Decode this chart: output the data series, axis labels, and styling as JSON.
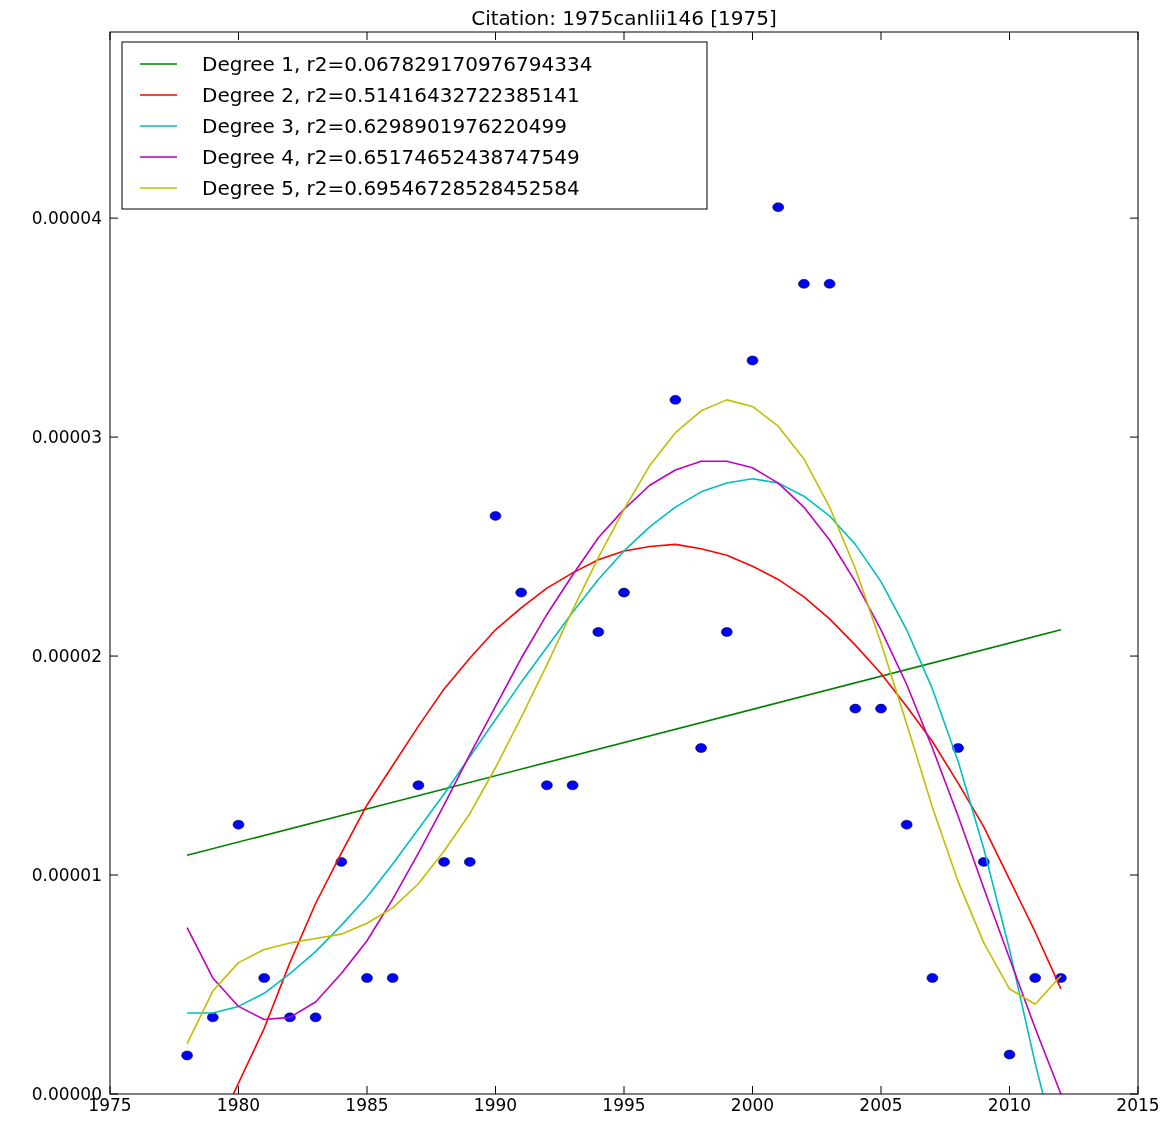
{
  "chart_data": {
    "type": "scatter",
    "title": "Citation: 1975canlii146 [1975]",
    "xlim": [
      1975,
      2015
    ],
    "xticks": [
      1975,
      1980,
      1985,
      1990,
      1995,
      2000,
      2005,
      2010,
      2015
    ],
    "ylim": [
      0,
      4.85e-05
    ],
    "yticks": [
      {
        "value": 0,
        "label": "0.00000"
      },
      {
        "value": 1e-05,
        "label": "0.00001"
      },
      {
        "value": 2e-05,
        "label": "0.00002"
      },
      {
        "value": 3e-05,
        "label": "0.00003"
      },
      {
        "value": 4e-05,
        "label": "0.00004"
      }
    ],
    "grid": false,
    "legend": "top left",
    "marker": "circle",
    "series": [
      {
        "color": "#0000ff",
        "x": [
          1978,
          1979,
          1980,
          1981,
          1982,
          1983,
          1984,
          1985,
          1986,
          1987,
          1988,
          1989,
          1990,
          1991,
          1992,
          1993,
          1994,
          1995,
          1997,
          1998,
          1999,
          2000,
          2001,
          2002,
          2003,
          2004,
          2005,
          2006,
          2007,
          2008,
          2009,
          2010,
          2011,
          2012
        ],
        "values": [
          1.76e-06,
          3.5e-06,
          1.23e-05,
          5.3e-06,
          3.5e-06,
          3.5e-06,
          1.06e-05,
          5.3e-06,
          5.3e-06,
          1.41e-05,
          1.06e-05,
          1.06e-05,
          2.64e-05,
          2.29e-05,
          1.41e-05,
          1.41e-05,
          2.11e-05,
          2.29e-05,
          3.17e-05,
          1.58e-05,
          2.11e-05,
          3.35e-05,
          4.05e-05,
          3.7e-05,
          3.7e-05,
          1.76e-05,
          1.76e-05,
          1.23e-05,
          5.3e-06,
          1.58e-05,
          1.06e-05,
          1.8e-06,
          5.3e-06,
          5.3e-06
        ]
      },
      {
        "type": "line",
        "name": "Degree 1, r2=0.067829170976794334",
        "color": "#008000",
        "marker": "none",
        "line_style": "solid",
        "x": [
          1978,
          2012
        ],
        "values": [
          1.09e-05,
          2.12e-05
        ]
      },
      {
        "type": "line",
        "name": "Degree 2, r2=0.51416432722385141",
        "color": "#ff0000",
        "marker": "none",
        "line_style": "solid",
        "x": [
          1979.8,
          1981,
          1982,
          1983,
          1984,
          1985,
          1986,
          1987,
          1988,
          1989,
          1990,
          1991,
          1992,
          1993,
          1994,
          1995,
          1996,
          1997,
          1998,
          1999,
          2000,
          2001,
          2002,
          2003,
          2004,
          2005,
          2006,
          2007,
          2008,
          2009,
          2010,
          2011,
          2012
        ],
        "values": [
          0,
          3e-06,
          6e-06,
          8.7e-06,
          1.1e-05,
          1.32e-05,
          1.5e-05,
          1.68e-05,
          1.85e-05,
          1.99e-05,
          2.12e-05,
          2.22e-05,
          2.31e-05,
          2.38e-05,
          2.44e-05,
          2.48e-05,
          2.5e-05,
          2.51e-05,
          2.49e-05,
          2.46e-05,
          2.41e-05,
          2.35e-05,
          2.27e-05,
          2.17e-05,
          2.05e-05,
          1.92e-05,
          1.77e-05,
          1.61e-05,
          1.42e-05,
          1.22e-05,
          9.8e-06,
          7.4e-06,
          4.8e-06
        ]
      },
      {
        "type": "line",
        "name": "Degree 3, r2=0.6298901976220499",
        "color": "#00bfbf",
        "marker": "none",
        "line_style": "solid",
        "x": [
          1978,
          1979,
          1980,
          1981,
          1982,
          1983,
          1984,
          1985,
          1986,
          1987,
          1988,
          1989,
          1990,
          1991,
          1992,
          1993,
          1994,
          1995,
          1996,
          1997,
          1998,
          1999,
          2000,
          2001,
          2002,
          2003,
          2004,
          2005,
          2006,
          2007,
          2008,
          2009,
          2010,
          2011,
          2011.3
        ],
        "values": [
          3.7e-06,
          3.7e-06,
          4e-06,
          4.6e-06,
          5.5e-06,
          6.5e-06,
          7.7e-06,
          9e-06,
          1.05e-05,
          1.21e-05,
          1.37e-05,
          1.54e-05,
          1.71e-05,
          1.88e-05,
          2.04e-05,
          2.2e-05,
          2.35e-05,
          2.48e-05,
          2.59e-05,
          2.68e-05,
          2.75e-05,
          2.79e-05,
          2.81e-05,
          2.79e-05,
          2.73e-05,
          2.64e-05,
          2.51e-05,
          2.34e-05,
          2.12e-05,
          1.85e-05,
          1.52e-05,
          1.12e-05,
          6.6e-06,
          1.4e-06,
          0
        ]
      },
      {
        "type": "line",
        "name": "Degree 4, r2=0.65174652438747549",
        "color": "#bf00bf",
        "marker": "none",
        "line_style": "solid",
        "x": [
          1978,
          1979,
          1980,
          1981,
          1982,
          1983,
          1984,
          1985,
          1986,
          1987,
          1988,
          1989,
          1990,
          1991,
          1992,
          1993,
          1994,
          1995,
          1996,
          1997,
          1998,
          1999,
          2000,
          2001,
          2002,
          2003,
          2004,
          2005,
          2006,
          2007,
          2008,
          2009,
          2010,
          2011,
          2012
        ],
        "values": [
          7.6e-06,
          5.3e-06,
          4e-06,
          3.4e-06,
          3.5e-06,
          4.2e-06,
          5.5e-06,
          7e-06,
          8.9e-06,
          1.1e-05,
          1.32e-05,
          1.55e-05,
          1.77e-05,
          1.99e-05,
          2.19e-05,
          2.37e-05,
          2.54e-05,
          2.67e-05,
          2.78e-05,
          2.85e-05,
          2.89e-05,
          2.89e-05,
          2.86e-05,
          2.79e-05,
          2.68e-05,
          2.53e-05,
          2.34e-05,
          2.12e-05,
          1.87e-05,
          1.58e-05,
          1.27e-05,
          9.4e-06,
          6.2e-06,
          3e-06,
          0
        ]
      },
      {
        "type": "line",
        "name": "Degree 5, r2=0.69546728528452584",
        "color": "#bfbf00",
        "marker": "none",
        "line_style": "solid",
        "x": [
          1978,
          1979,
          1980,
          1981,
          1982,
          1983,
          1984,
          1985,
          1986,
          1987,
          1988,
          1989,
          1990,
          1991,
          1992,
          1993,
          1994,
          1995,
          1996,
          1997,
          1998,
          1999,
          2000,
          2001,
          2002,
          2003,
          2004,
          2005,
          2006,
          2007,
          2008,
          2009,
          2010,
          2011,
          2012
        ],
        "values": [
          2.3e-06,
          4.7e-06,
          6e-06,
          6.6e-06,
          6.9e-06,
          7.1e-06,
          7.3e-06,
          7.8e-06,
          8.5e-06,
          9.6e-06,
          1.11e-05,
          1.28e-05,
          1.49e-05,
          1.72e-05,
          1.96e-05,
          2.21e-05,
          2.45e-05,
          2.67e-05,
          2.87e-05,
          3.02e-05,
          3.12e-05,
          3.17e-05,
          3.14e-05,
          3.05e-05,
          2.9e-05,
          2.68e-05,
          2.4e-05,
          2.06e-05,
          1.69e-05,
          1.31e-05,
          9.7e-06,
          6.9e-06,
          4.8e-06,
          4.1e-06,
          5.4e-06
        ]
      }
    ]
  }
}
